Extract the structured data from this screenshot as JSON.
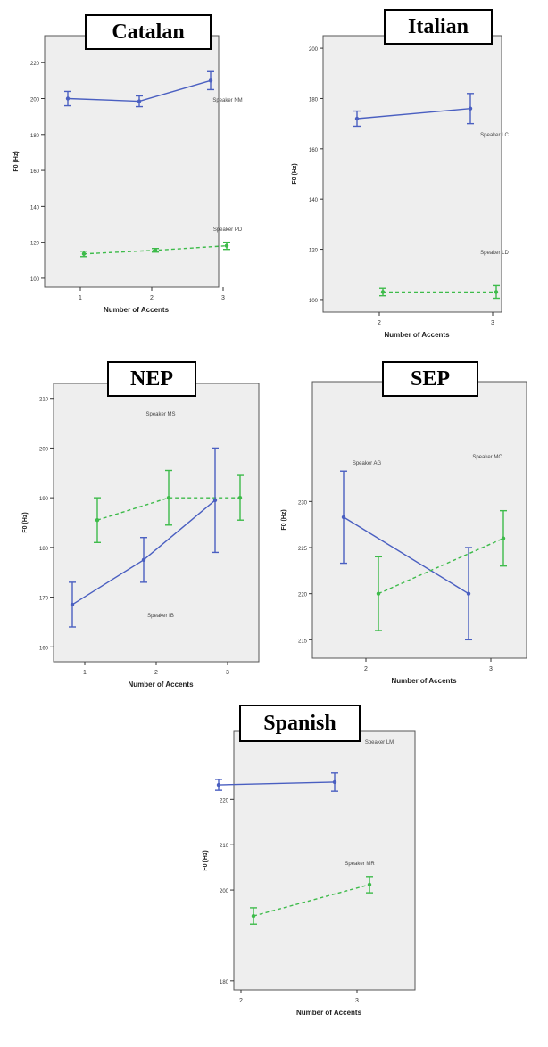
{
  "colors": {
    "speaker_a": "#4a5fc1",
    "speaker_b": "#3dbb4a",
    "plot_bg": "#eeeeee",
    "frame": "#555555"
  },
  "chart_data": [
    {
      "type": "line",
      "title": "Catalan",
      "xlabel": "Number of Accents",
      "ylabel": "F0 (Hz)",
      "x_ticks": [
        "1",
        "2",
        "3"
      ],
      "ylim": [
        95,
        235
      ],
      "y_ticks": [
        "100",
        "120",
        "140",
        "160",
        "180",
        "200",
        "220"
      ],
      "series": [
        {
          "name": "Speaker NM",
          "style": "solid",
          "color": "#4a5fc1",
          "points": [
            {
              "x": 1,
              "y": 200,
              "err": 4
            },
            {
              "x": 2,
              "y": 198.5,
              "err": 3
            },
            {
              "x": 3,
              "y": 210,
              "err": 5
            }
          ]
        },
        {
          "name": "Speaker PD",
          "style": "dashed",
          "color": "#3dbb4a",
          "points": [
            {
              "x": 1,
              "y": 113.5,
              "err": 1.5
            },
            {
              "x": 2,
              "y": 115.5,
              "err": 1
            },
            {
              "x": 3,
              "y": 118,
              "err": 2
            }
          ]
        }
      ]
    },
    {
      "type": "line",
      "title": "Italian",
      "xlabel": "Number of Accents",
      "ylabel": "F0 (Hz)",
      "x_ticks": [
        "2",
        "3"
      ],
      "ylim": [
        95,
        205
      ],
      "y_ticks": [
        "100",
        "120",
        "140",
        "160",
        "180",
        "200"
      ],
      "series": [
        {
          "name": "Speaker LC",
          "style": "solid",
          "color": "#4a5fc1",
          "points": [
            {
              "x": 2,
              "y": 172,
              "err": 3
            },
            {
              "x": 3,
              "y": 176,
              "err": 6
            }
          ]
        },
        {
          "name": "Speaker LD",
          "style": "dashed",
          "color": "#3dbb4a",
          "points": [
            {
              "x": 2,
              "y": 103,
              "err": 1.5
            },
            {
              "x": 3,
              "y": 103,
              "err": 2.5
            }
          ]
        }
      ]
    },
    {
      "type": "line",
      "title": "NEP",
      "xlabel": "Number of Accents",
      "ylabel": "F0 (Hz)",
      "x_ticks": [
        "1",
        "2",
        "3"
      ],
      "ylim": [
        157,
        213
      ],
      "y_ticks": [
        "160",
        "170",
        "180",
        "190",
        "200",
        "210"
      ],
      "series": [
        {
          "name": "Speaker MS",
          "style": "dashed",
          "color": "#3dbb4a",
          "points": [
            {
              "x": 1,
              "y": 185.5,
              "err": 4.5
            },
            {
              "x": 2,
              "y": 190,
              "err": 5.5
            },
            {
              "x": 3,
              "y": 190,
              "err": 4.5
            }
          ]
        },
        {
          "name": "Speaker IB",
          "style": "solid",
          "color": "#4a5fc1",
          "points": [
            {
              "x": 1,
              "y": 168.5,
              "err": 4.5
            },
            {
              "x": 2,
              "y": 177.5,
              "err": 4.5
            },
            {
              "x": 3,
              "y": 189.5,
              "err": 10.5
            }
          ]
        }
      ]
    },
    {
      "type": "line",
      "title": "SEP",
      "xlabel": "Number of Accents",
      "ylabel": "F0 (Hz)",
      "x_ticks": [
        "2",
        "3"
      ],
      "ylim": [
        213,
        243
      ],
      "y_ticks": [
        "215",
        "220",
        "225",
        "230"
      ],
      "series": [
        {
          "name": "Speaker AG",
          "style": "solid",
          "color": "#4a5fc1",
          "points": [
            {
              "x": 2,
              "y": 228.3,
              "err": 5
            },
            {
              "x": 3,
              "y": 220,
              "err": 5
            }
          ]
        },
        {
          "name": "Speaker MC",
          "style": "dashed",
          "color": "#3dbb4a",
          "points": [
            {
              "x": 2,
              "y": 220,
              "err": 4
            },
            {
              "x": 3,
              "y": 226,
              "err": 3
            }
          ]
        }
      ]
    },
    {
      "type": "line",
      "title": "Spanish",
      "xlabel": "Number of Accents",
      "ylabel": "F0 (Hz)",
      "x_ticks": [
        "2",
        "3"
      ],
      "ylim": [
        178,
        235
      ],
      "y_ticks": [
        "180",
        "200",
        "210",
        "220"
      ],
      "series": [
        {
          "name": "Speaker LM",
          "style": "solid",
          "color": "#4a5fc1",
          "points": [
            {
              "x": 2,
              "y": 223.2,
              "err": 1.2
            },
            {
              "x": 3,
              "y": 223.8,
              "err": 2
            }
          ]
        },
        {
          "name": "Speaker MR",
          "style": "dashed",
          "color": "#3dbb4a",
          "points": [
            {
              "x": 2,
              "y": 194.3,
              "err": 1.8
            },
            {
              "x": 3,
              "y": 201.2,
              "err": 1.8
            }
          ]
        }
      ]
    }
  ]
}
